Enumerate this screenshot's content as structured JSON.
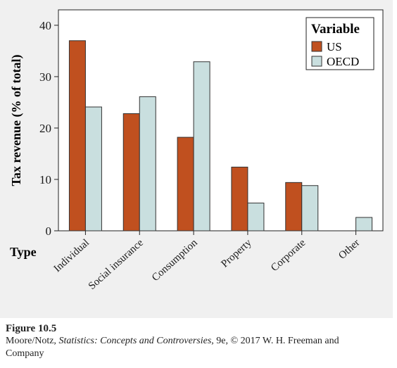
{
  "chart_data": {
    "type": "bar",
    "categories": [
      "Individual",
      "Social insurance",
      "Consumption",
      "Property",
      "Corporate",
      "Other"
    ],
    "series": [
      {
        "name": "US",
        "values": [
          37,
          22.8,
          18.2,
          12.4,
          9.4,
          0
        ],
        "color": "#c0501f"
      },
      {
        "name": "OECD",
        "values": [
          24.1,
          26.1,
          32.9,
          5.4,
          8.8,
          2.6
        ],
        "color": "#c9dfdf"
      }
    ],
    "ylabel": "Tax revenue (% of total)",
    "xlabel": "Type",
    "ylim": [
      0,
      43
    ],
    "yticks": [
      0,
      10,
      20,
      30,
      40
    ],
    "legend": {
      "title": "Variable",
      "placement": "top-right"
    },
    "grid": false
  },
  "caption": {
    "figure_label": "Figure 10.5",
    "authors": "Moore/Notz, ",
    "book_title": "Statistics: Concepts and Controversies",
    "edition_rest": ", 9e, © 2017 W. H. Freeman and",
    "last_line": "Company"
  }
}
